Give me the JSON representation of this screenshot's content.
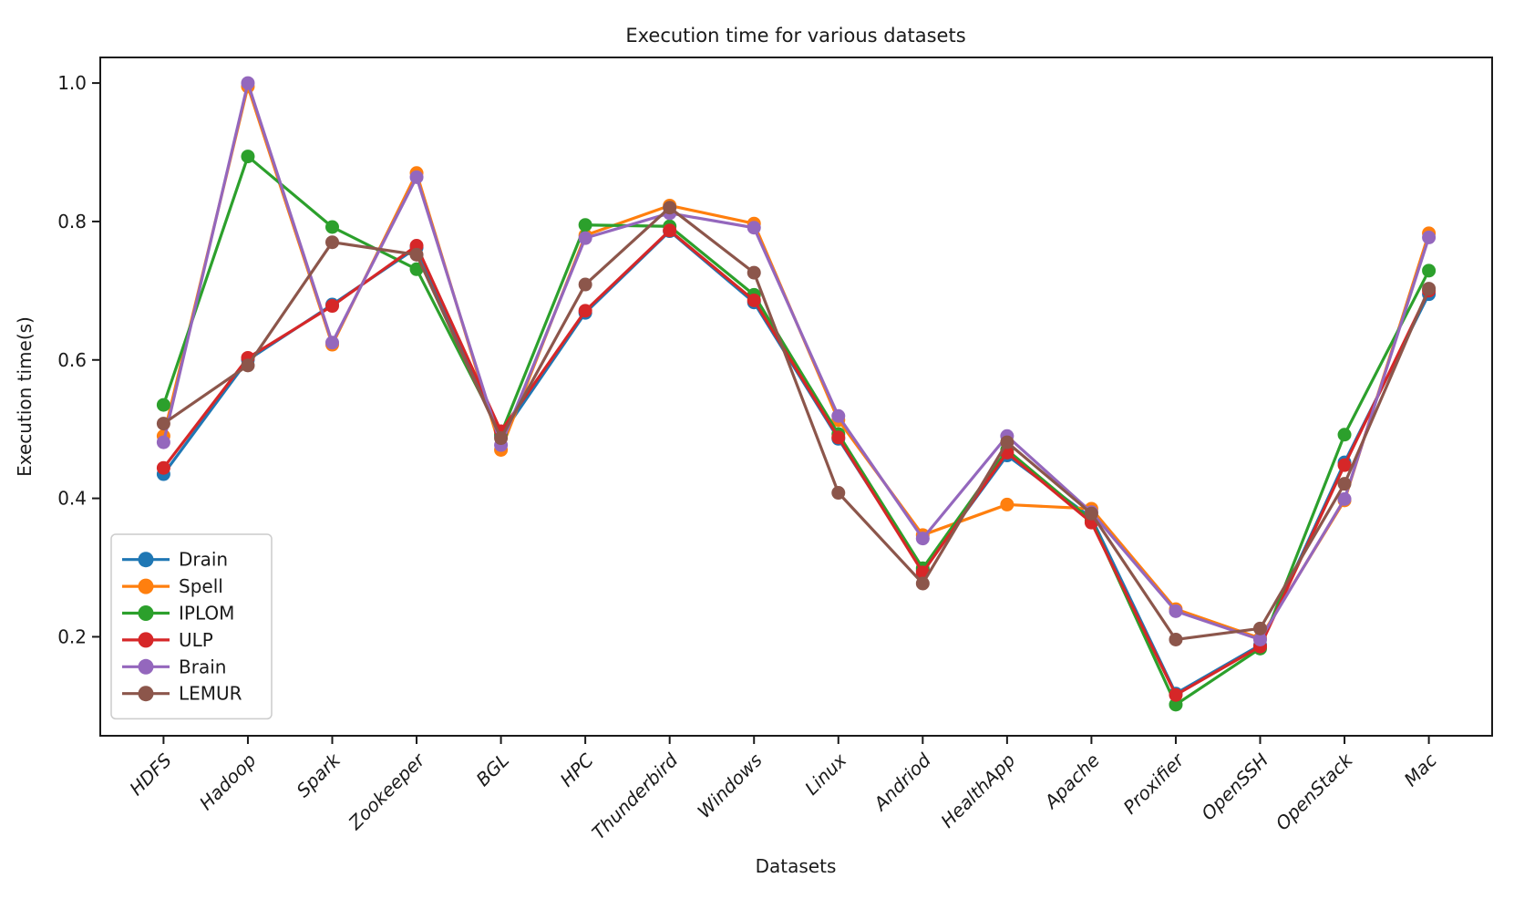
{
  "title": "Execution time for various datasets",
  "chart_data": {
    "type": "line",
    "title": "Execution time for various datasets",
    "xlabel": "Datasets",
    "ylabel": "Execution time(s)",
    "grid": false,
    "legend_position": "lower left",
    "marker": "circle",
    "categories": [
      "HDFS",
      "Hadoop",
      "Spark",
      "Zookeeper",
      "BGL",
      "HPC",
      "Thunderbird",
      "Windows",
      "Linux",
      "Andriod",
      "HealthApp",
      "Apache",
      "Proxifier",
      "OpenSSH",
      "OpenStack",
      "Mac"
    ],
    "yticks": [
      0.2,
      0.4,
      0.6,
      0.8,
      1.0
    ],
    "ylim": [
      0.057,
      1.037
    ],
    "xlim": [
      -0.75,
      15.75
    ],
    "series": [
      {
        "name": "Drain",
        "color": "#1f77b4",
        "values": [
          0.435,
          0.6,
          0.68,
          0.762,
          0.49,
          0.668,
          0.786,
          0.683,
          0.486,
          0.296,
          0.462,
          0.372,
          0.118,
          0.188,
          0.452,
          0.695
        ]
      },
      {
        "name": "Spell",
        "color": "#ff7f0e",
        "values": [
          0.49,
          0.995,
          0.622,
          0.87,
          0.47,
          0.78,
          0.823,
          0.797,
          0.513,
          0.347,
          0.391,
          0.385,
          0.24,
          0.198,
          0.397,
          0.783
        ]
      },
      {
        "name": "IPLOM",
        "color": "#2ca02c",
        "values": [
          0.535,
          0.894,
          0.792,
          0.731,
          0.493,
          0.795,
          0.793,
          0.694,
          0.493,
          0.299,
          0.47,
          0.368,
          0.102,
          0.183,
          0.492,
          0.729
        ]
      },
      {
        "name": "ULP",
        "color": "#d62728",
        "values": [
          0.444,
          0.603,
          0.678,
          0.765,
          0.497,
          0.671,
          0.787,
          0.686,
          0.488,
          0.293,
          0.466,
          0.365,
          0.116,
          0.186,
          0.448,
          0.7
        ]
      },
      {
        "name": "Brain",
        "color": "#9467bd",
        "values": [
          0.481,
          1.0,
          0.625,
          0.864,
          0.477,
          0.776,
          0.812,
          0.791,
          0.519,
          0.342,
          0.49,
          0.38,
          0.237,
          0.196,
          0.399,
          0.777
        ]
      },
      {
        "name": "LEMUR",
        "color": "#8c564b",
        "values": [
          0.508,
          0.592,
          0.77,
          0.752,
          0.487,
          0.709,
          0.82,
          0.726,
          0.408,
          0.277,
          0.481,
          0.378,
          0.196,
          0.212,
          0.421,
          0.703
        ]
      }
    ],
    "colors": {
      "axis": "#1a1a1a",
      "legend_border": "#cccccc",
      "background": "#ffffff"
    }
  }
}
